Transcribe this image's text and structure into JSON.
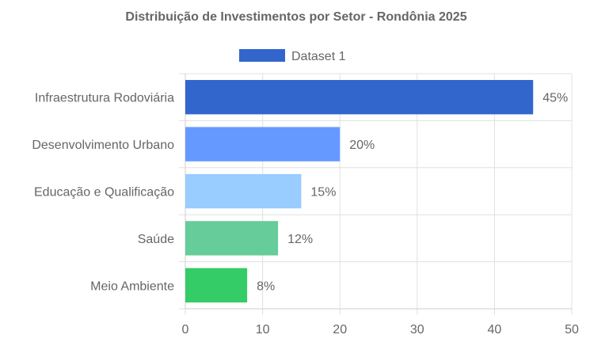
{
  "chart_data": {
    "type": "bar",
    "orientation": "horizontal",
    "title": "Distribuição de Investimentos por Setor - Rondônia 2025",
    "legend": {
      "position": "top",
      "label": "Dataset 1",
      "color": "#3366cc"
    },
    "categories": [
      "Infraestrutura Rodoviária",
      "Desenvolvimento Urbano",
      "Educação e Qualificação",
      "Saúde",
      "Meio Ambiente"
    ],
    "series": [
      {
        "name": "Dataset 1",
        "values": [
          45,
          20,
          15,
          12,
          8
        ]
      }
    ],
    "data_labels": [
      "45%",
      "20%",
      "15%",
      "12%",
      "8%"
    ],
    "colors": [
      "#3366cc",
      "#6699ff",
      "#99ccff",
      "#66cc99",
      "#33cc66"
    ],
    "xlim": [
      0,
      50
    ],
    "xticks": [
      0,
      10,
      20,
      30,
      40,
      50
    ],
    "xtick_labels": [
      "0",
      "10",
      "20",
      "30",
      "40",
      "50"
    ],
    "grid": true
  }
}
